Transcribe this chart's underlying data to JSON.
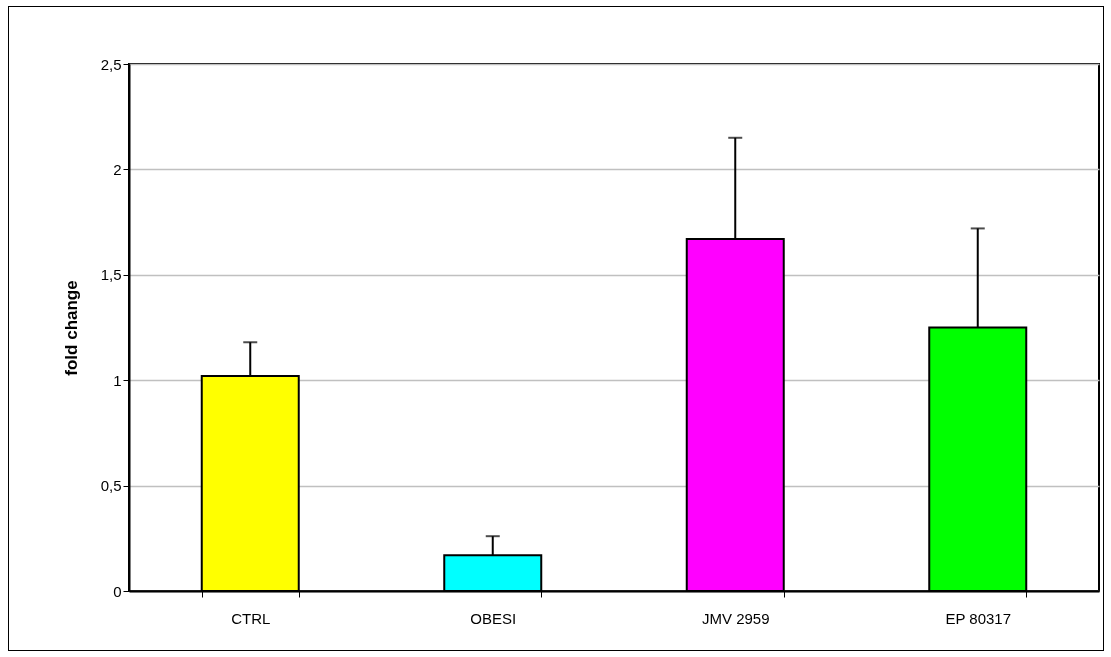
{
  "chart_data": {
    "type": "bar",
    "ylabel": "fold change",
    "categories": [
      "CTRL",
      "OBESI",
      "JMV  2959",
      "EP 80317"
    ],
    "values": [
      1.02,
      0.17,
      1.67,
      1.25
    ],
    "colors": [
      "#ffff00",
      "#00ffff",
      "#ff00ff",
      "#00ff00"
    ],
    "errors": [
      [
        1.02,
        1.18
      ],
      [
        0.17,
        0.26
      ],
      [
        1.67,
        2.15
      ],
      [
        1.25,
        1.72
      ]
    ],
    "ylim": [
      0,
      2.5
    ],
    "yticks": [
      0,
      {
        "value": 0.5,
        "label": "0,5"
      },
      1,
      {
        "value": 1.5,
        "label": "1,5"
      },
      2,
      {
        "value": 2.5,
        "label": "2,5"
      }
    ],
    "grid": "y",
    "legend": false
  }
}
